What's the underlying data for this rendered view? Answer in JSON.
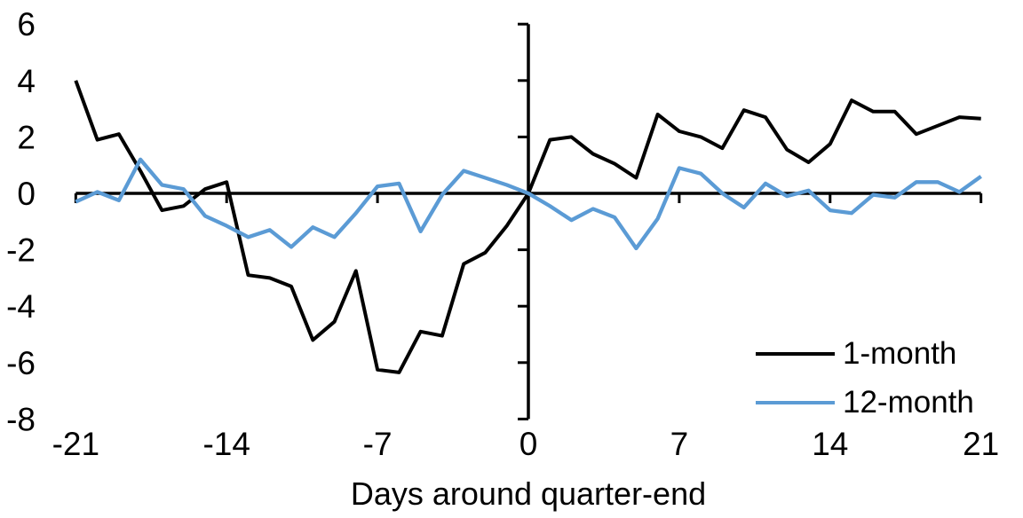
{
  "chart_data": {
    "type": "line",
    "title": "",
    "xlabel": "Days around quarter-end",
    "ylabel": "",
    "xlim": [
      -21,
      21
    ],
    "ylim": [
      -8,
      6
    ],
    "x_ticks": [
      -21,
      -14,
      -7,
      0,
      7,
      14,
      21
    ],
    "y_ticks": [
      6,
      4,
      2,
      0,
      -2,
      -4,
      -6,
      -8
    ],
    "grid": false,
    "legend_position": "lower-right",
    "axis_color": "#000000",
    "x": [
      -21,
      -20,
      -19,
      -18,
      -17,
      -16,
      -15,
      -14,
      -13,
      -12,
      -11,
      -10,
      -9,
      -8,
      -7,
      -6,
      -5,
      -4,
      -3,
      -2,
      -1,
      0,
      1,
      2,
      3,
      4,
      5,
      6,
      7,
      8,
      9,
      10,
      11,
      12,
      13,
      14,
      15,
      16,
      17,
      18,
      19,
      20,
      21
    ],
    "series": [
      {
        "name": "1-month",
        "color": "#000000",
        "values": [
          4.0,
          1.9,
          2.1,
          0.8,
          -0.6,
          -0.45,
          0.15,
          0.4,
          -2.9,
          -3.0,
          -3.3,
          -5.2,
          -4.55,
          -2.75,
          -6.25,
          -6.35,
          -4.9,
          -5.05,
          -2.5,
          -2.1,
          -1.15,
          0.0,
          1.9,
          2.0,
          1.4,
          1.05,
          0.55,
          2.8,
          2.2,
          2.0,
          1.6,
          2.95,
          2.7,
          1.55,
          1.1,
          1.75,
          3.3,
          2.9,
          2.9,
          2.1,
          2.4,
          2.7,
          2.65
        ]
      },
      {
        "name": "12-month",
        "color": "#5B9BD5",
        "values": [
          -0.3,
          0.05,
          -0.25,
          1.2,
          0.3,
          0.15,
          -0.8,
          -1.15,
          -1.55,
          -1.3,
          -1.9,
          -1.2,
          -1.55,
          -0.7,
          0.25,
          0.35,
          -1.35,
          -0.05,
          0.8,
          0.55,
          0.3,
          0.0,
          -0.45,
          -0.95,
          -0.55,
          -0.85,
          -1.95,
          -0.9,
          0.9,
          0.7,
          0.0,
          -0.5,
          0.35,
          -0.1,
          0.1,
          -0.6,
          -0.7,
          -0.05,
          -0.15,
          0.4,
          0.4,
          0.05,
          0.6
        ]
      }
    ]
  }
}
